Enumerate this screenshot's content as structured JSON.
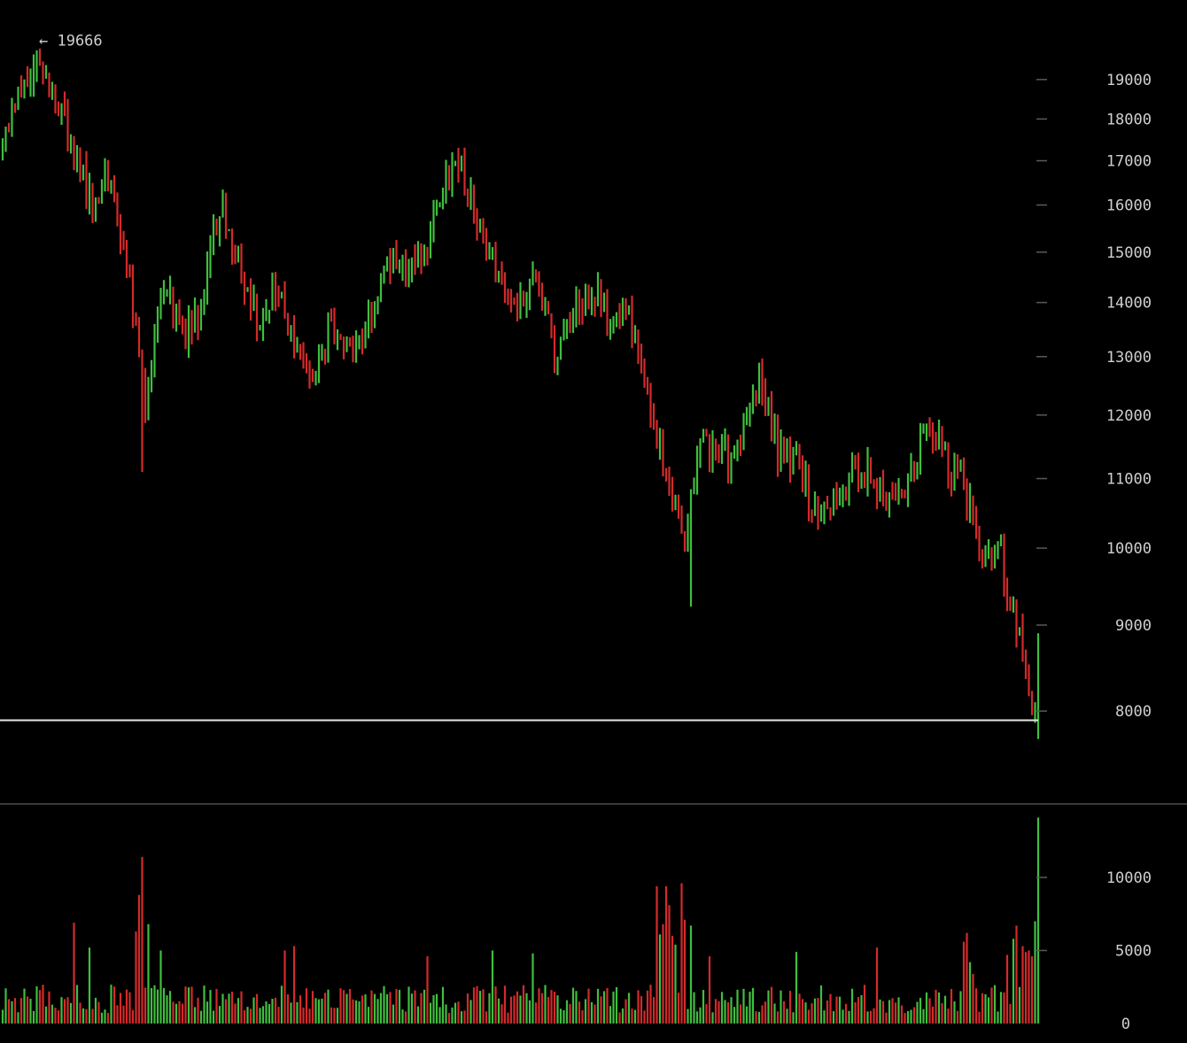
{
  "colors": {
    "background": "#000000",
    "up": "#3fbf3f",
    "down": "#d42a2a",
    "axis_text": "#cfcfcf",
    "tick_mark": "#5a5a5a",
    "divider": "#3a3a3a",
    "price_line": "#e6e6e6"
  },
  "chart_data": [
    {
      "type": "ohlc",
      "panel": "price",
      "scale": "log",
      "ylim": [
        7650,
        19700
      ],
      "y_ticks": [
        19000,
        18000,
        17000,
        16000,
        15000,
        14000,
        13000,
        12000,
        11000,
        10000,
        9000,
        8000
      ],
      "y_tick_labels": [
        "19000",
        "18000",
        "17000",
        "16000",
        "15000",
        "14000",
        "13000",
        "12000",
        "11000",
        "10000",
        "9000",
        "8000"
      ],
      "high_annotation": {
        "text": "← 19666",
        "value": 19666
      },
      "current_price_line": 7900,
      "waypoints": [
        [
          0,
          17600
        ],
        [
          5,
          18700
        ],
        [
          10,
          19400
        ],
        [
          16,
          18600
        ],
        [
          22,
          17500
        ],
        [
          28,
          16200
        ],
        [
          34,
          16600
        ],
        [
          40,
          14800
        ],
        [
          46,
          12100
        ],
        [
          52,
          14300
        ],
        [
          58,
          13300
        ],
        [
          64,
          13900
        ],
        [
          70,
          15900
        ],
        [
          76,
          14600
        ],
        [
          82,
          13700
        ],
        [
          88,
          14400
        ],
        [
          94,
          13100
        ],
        [
          100,
          12400
        ],
        [
          106,
          13700
        ],
        [
          112,
          13200
        ],
        [
          118,
          13600
        ],
        [
          124,
          14900
        ],
        [
          130,
          14600
        ],
        [
          136,
          14900
        ],
        [
          142,
          16600
        ],
        [
          148,
          16700
        ],
        [
          154,
          15500
        ],
        [
          160,
          14600
        ],
        [
          166,
          13700
        ],
        [
          172,
          14800
        ],
        [
          178,
          13100
        ],
        [
          184,
          13900
        ],
        [
          190,
          14300
        ],
        [
          196,
          13600
        ],
        [
          202,
          13800
        ],
        [
          208,
          12500
        ],
        [
          214,
          10900
        ],
        [
          220,
          10200
        ],
        [
          226,
          11600
        ],
        [
          232,
          11300
        ],
        [
          238,
          11500
        ],
        [
          244,
          12600
        ],
        [
          250,
          11500
        ],
        [
          256,
          11300
        ],
        [
          262,
          10400
        ],
        [
          268,
          10600
        ],
        [
          274,
          11000
        ],
        [
          280,
          11100
        ],
        [
          286,
          10700
        ],
        [
          292,
          11000
        ],
        [
          298,
          11900
        ],
        [
          304,
          11300
        ],
        [
          310,
          10900
        ],
        [
          316,
          9800
        ],
        [
          322,
          9900
        ],
        [
          328,
          8800
        ],
        [
          333,
          8000
        ],
        [
          334,
          8750
        ]
      ]
    },
    {
      "type": "bar",
      "panel": "volume",
      "ylim": [
        0,
        14000
      ],
      "y_ticks": [
        10000,
        5000,
        0
      ],
      "y_tick_labels": [
        "10000",
        "5000",
        "0"
      ],
      "base_volume": 1400,
      "spikes": [
        [
          23,
          6900
        ],
        [
          28,
          5200
        ],
        [
          43,
          6300
        ],
        [
          44,
          8800
        ],
        [
          45,
          11400
        ],
        [
          47,
          6800
        ],
        [
          51,
          5000
        ],
        [
          91,
          5000
        ],
        [
          94,
          5300
        ],
        [
          137,
          4600
        ],
        [
          158,
          5000
        ],
        [
          171,
          4800
        ],
        [
          211,
          9400
        ],
        [
          212,
          6100
        ],
        [
          213,
          6800
        ],
        [
          214,
          9400
        ],
        [
          215,
          8100
        ],
        [
          216,
          6000
        ],
        [
          217,
          5400
        ],
        [
          219,
          9600
        ],
        [
          220,
          7100
        ],
        [
          222,
          6700
        ],
        [
          228,
          4600
        ],
        [
          256,
          4900
        ],
        [
          282,
          5200
        ],
        [
          310,
          5600
        ],
        [
          311,
          6200
        ],
        [
          312,
          4200
        ],
        [
          313,
          3400
        ],
        [
          324,
          4700
        ],
        [
          326,
          5800
        ],
        [
          327,
          6700
        ],
        [
          329,
          5300
        ],
        [
          330,
          4900
        ],
        [
          331,
          5000
        ],
        [
          332,
          4600
        ],
        [
          333,
          7000
        ],
        [
          334,
          14100
        ]
      ]
    }
  ]
}
